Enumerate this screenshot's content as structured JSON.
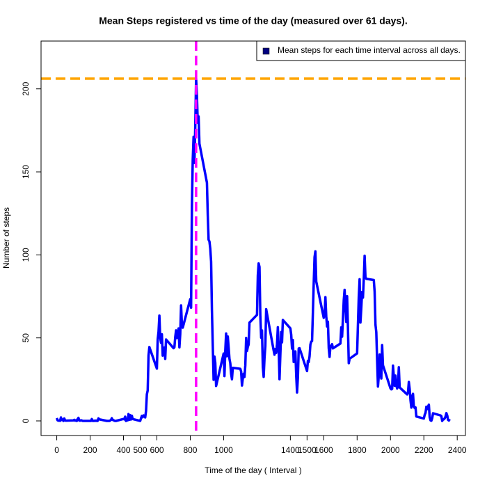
{
  "chart_data": {
    "type": "line",
    "title": "Mean Steps registered vs time of the day (measured over 61 days).",
    "x_label": "Time of the day ( Interval )",
    "y_label": "Number of steps",
    "x": [
      0,
      5,
      10,
      15,
      20,
      25,
      30,
      35,
      40,
      45,
      50,
      55,
      100,
      105,
      110,
      115,
      120,
      125,
      130,
      135,
      140,
      145,
      150,
      155,
      200,
      205,
      210,
      215,
      220,
      225,
      230,
      235,
      240,
      245,
      250,
      255,
      300,
      305,
      310,
      315,
      320,
      325,
      330,
      335,
      340,
      345,
      350,
      355,
      400,
      405,
      410,
      415,
      420,
      425,
      430,
      435,
      440,
      445,
      450,
      455,
      500,
      505,
      510,
      515,
      520,
      525,
      530,
      535,
      540,
      545,
      550,
      555,
      600,
      605,
      610,
      615,
      620,
      625,
      630,
      635,
      640,
      645,
      650,
      655,
      700,
      705,
      710,
      715,
      720,
      725,
      730,
      735,
      740,
      745,
      750,
      755,
      800,
      805,
      810,
      815,
      820,
      825,
      830,
      835,
      840,
      845,
      850,
      855,
      900,
      905,
      910,
      915,
      920,
      925,
      930,
      935,
      940,
      945,
      950,
      955,
      1000,
      1005,
      1010,
      1015,
      1020,
      1025,
      1030,
      1035,
      1040,
      1045,
      1050,
      1055,
      1100,
      1105,
      1110,
      1115,
      1120,
      1125,
      1130,
      1135,
      1140,
      1145,
      1150,
      1155,
      1200,
      1205,
      1210,
      1215,
      1220,
      1225,
      1230,
      1235,
      1240,
      1245,
      1250,
      1255,
      1300,
      1305,
      1310,
      1315,
      1320,
      1325,
      1330,
      1335,
      1340,
      1345,
      1350,
      1355,
      1400,
      1405,
      1410,
      1415,
      1420,
      1425,
      1430,
      1435,
      1440,
      1445,
      1450,
      1455,
      1500,
      1505,
      1510,
      1515,
      1520,
      1525,
      1530,
      1535,
      1540,
      1545,
      1550,
      1555,
      1600,
      1605,
      1610,
      1615,
      1620,
      1625,
      1630,
      1635,
      1640,
      1645,
      1650,
      1655,
      1700,
      1705,
      1710,
      1715,
      1720,
      1725,
      1730,
      1735,
      1740,
      1745,
      1750,
      1755,
      1800,
      1805,
      1810,
      1815,
      1820,
      1825,
      1830,
      1835,
      1840,
      1845,
      1850,
      1855,
      1900,
      1905,
      1910,
      1915,
      1920,
      1925,
      1930,
      1935,
      1940,
      1945,
      1950,
      1955,
      2000,
      2005,
      2010,
      2015,
      2020,
      2025,
      2030,
      2035,
      2040,
      2045,
      2050,
      2055,
      2100,
      2105,
      2110,
      2115,
      2120,
      2125,
      2130,
      2135,
      2140,
      2145,
      2150,
      2155,
      2200,
      2205,
      2210,
      2215,
      2220,
      2225,
      2230,
      2235,
      2240,
      2245,
      2250,
      2255,
      2300,
      2305,
      2310,
      2315,
      2320,
      2325,
      2330,
      2335,
      2340,
      2345,
      2350,
      2355
    ],
    "series": [
      {
        "name": "Mean steps for each time interval across all days.",
        "color": "#0000ff",
        "legend_color": "#000080",
        "values": [
          1.717,
          0.34,
          0.132,
          0.151,
          0.075,
          2.094,
          0.528,
          0.868,
          0,
          1.472,
          0.302,
          0.132,
          0.321,
          0.679,
          0.151,
          0.34,
          0,
          1.113,
          1.83,
          0.17,
          0.17,
          0.377,
          0.264,
          0,
          0,
          0,
          1.132,
          0,
          0,
          0.132,
          0,
          0.226,
          0,
          0,
          1.547,
          0.943,
          0,
          0,
          0,
          0,
          0.208,
          0.623,
          1.623,
          0.585,
          0.491,
          0.075,
          0,
          0,
          1.189,
          0.943,
          2.566,
          0,
          0.34,
          0.358,
          4.113,
          0.66,
          3.491,
          0.83,
          3.113,
          1.113,
          0,
          1.566,
          3.0,
          2.245,
          3.321,
          2.962,
          2.094,
          6.057,
          16.019,
          18.34,
          39.453,
          44.491,
          31.491,
          49.264,
          53.774,
          63.453,
          49.962,
          47.075,
          52.151,
          39.34,
          44.019,
          44.17,
          37.358,
          49.038,
          43.811,
          44.377,
          50.509,
          54.509,
          49.925,
          50.981,
          55.679,
          44.321,
          52.264,
          69.547,
          57.849,
          56.151,
          73.377,
          68.208,
          129.434,
          157.528,
          171.151,
          155.396,
          177.302,
          206.17,
          195.925,
          179.566,
          183.396,
          167.019,
          143.453,
          124.038,
          109.113,
          108.113,
          103.717,
          95.962,
          66.208,
          45.226,
          24.792,
          38.755,
          34.981,
          21.057,
          40.566,
          26.981,
          42.415,
          52.66,
          38.925,
          50.792,
          44.283,
          37.415,
          34.698,
          28.34,
          25.094,
          31.943,
          31.358,
          29.679,
          21.321,
          25.547,
          28.377,
          26.472,
          33.434,
          49.981,
          42.038,
          44.604,
          46.038,
          59.189,
          63.868,
          87.698,
          94.849,
          92.774,
          63.396,
          50.17,
          54.472,
          32.415,
          26.528,
          37.736,
          45.057,
          67.283,
          42.34,
          39.887,
          43.264,
          40.981,
          46.245,
          56.434,
          42.755,
          25.132,
          39.962,
          53.547,
          47.321,
          60.811,
          55.755,
          51.962,
          43.585,
          48.698,
          35.472,
          37.547,
          41.849,
          27.509,
          17.113,
          26.075,
          43.623,
          43.774,
          30.019,
          36.075,
          35.491,
          38.849,
          45.962,
          47.755,
          48.132,
          65.321,
          82.906,
          98.66,
          102.113,
          83.962,
          62.132,
          64.132,
          74.547,
          63.17,
          56.906,
          59.774,
          43.868,
          38.566,
          44.66,
          45.453,
          46.208,
          43.679,
          46.623,
          56.302,
          50.717,
          61.226,
          72.717,
          78.943,
          68.943,
          59.66,
          75.094,
          56.509,
          34.774,
          37.453,
          40.679,
          58.019,
          74.698,
          85.321,
          59.264,
          67.774,
          77.698,
          74.245,
          85.34,
          99.453,
          86.585,
          85.604,
          84.868,
          77.83,
          58.038,
          53.358,
          36.321,
          20.717,
          27.396,
          40.019,
          30.208,
          25.547,
          45.66,
          33.528,
          19.623,
          19.019,
          19.34,
          33.34,
          26.811,
          21.17,
          27.302,
          21.34,
          19.547,
          21.321,
          32.302,
          20.151,
          15.943,
          17.226,
          23.453,
          19.245,
          12.453,
          8.019,
          14.66,
          16.302,
          8.679,
          7.792,
          8.132,
          2.623,
          1.453,
          3.679,
          4.811,
          8.509,
          7.075,
          8.698,
          9.755,
          2.208,
          0.321,
          0.113,
          1.604,
          4.604,
          3.302,
          2.849,
          0,
          0.83,
          0.962,
          1.585,
          2.604,
          4.698,
          3.302,
          0.642,
          0.226,
          1.075
        ]
      }
    ],
    "xlim": [
      -94.2,
      2449.2
    ],
    "ylim": [
      -8.8,
      228.8
    ],
    "xticks": [
      0,
      200,
      400,
      500,
      600,
      800,
      1000,
      1400,
      1500,
      1600,
      1800,
      2000,
      2200,
      2400
    ],
    "yticks": [
      0,
      50,
      100,
      150,
      200
    ],
    "hlines": [
      {
        "value": 206.17,
        "color": "#ffa500"
      }
    ],
    "vlines": [
      {
        "value": 835,
        "color": "#ff00ff"
      }
    ],
    "legend": "topright"
  }
}
